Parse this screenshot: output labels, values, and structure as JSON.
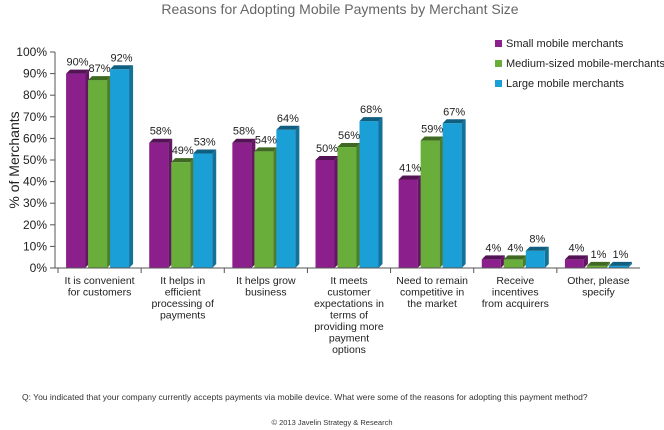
{
  "chart_data": {
    "type": "bar",
    "title": "Reasons for Adopting Mobile Payments by Merchant Size",
    "ylabel": "% of Merchants",
    "xlabel": "",
    "ylim": [
      0,
      100
    ],
    "yticks": [
      "0%",
      "10%",
      "20%",
      "30%",
      "40%",
      "50%",
      "60%",
      "70%",
      "80%",
      "90%",
      "100%"
    ],
    "grid": false,
    "legend_position": "top-right",
    "categories": [
      [
        "It is convenient",
        "for customers"
      ],
      [
        "It helps in",
        "efficient",
        "processing of",
        "payments"
      ],
      [
        "It helps grow",
        "business"
      ],
      [
        "It meets",
        "customer",
        "expectations in",
        "terms of",
        "providing more",
        "payment",
        "options"
      ],
      [
        "Need to remain",
        "competitive in",
        "the market"
      ],
      [
        "Receive",
        "incentives",
        "from acquirers"
      ],
      [
        "Other, please",
        "specify"
      ]
    ],
    "series": [
      {
        "name": "Small mobile merchants",
        "color": "#8b1f8c",
        "values": [
          90,
          58,
          58,
          50,
          41,
          4,
          4
        ],
        "labels": [
          "90%",
          "58%",
          "58%",
          "50%",
          "41%",
          "4%",
          "4%"
        ]
      },
      {
        "name": "Medium-sized mobile-merchants",
        "color": "#69ad3b",
        "values": [
          87,
          49,
          54,
          56,
          59,
          4,
          1
        ],
        "labels": [
          "87%",
          "49%",
          "54%",
          "56%",
          "59%",
          "4%",
          "1%"
        ]
      },
      {
        "name": "Large mobile merchants",
        "color": "#1a9fd6",
        "values": [
          92,
          53,
          64,
          68,
          67,
          8,
          1
        ],
        "labels": [
          "92%",
          "53%",
          "64%",
          "68%",
          "67%",
          "8%",
          "1%"
        ]
      }
    ]
  },
  "footer": {
    "question": "Q: You indicated that your company currently accepts payments via mobile device. What were some of the reasons for adopting this payment method?",
    "copyright": "© 2013 Javelin Strategy & Research"
  }
}
